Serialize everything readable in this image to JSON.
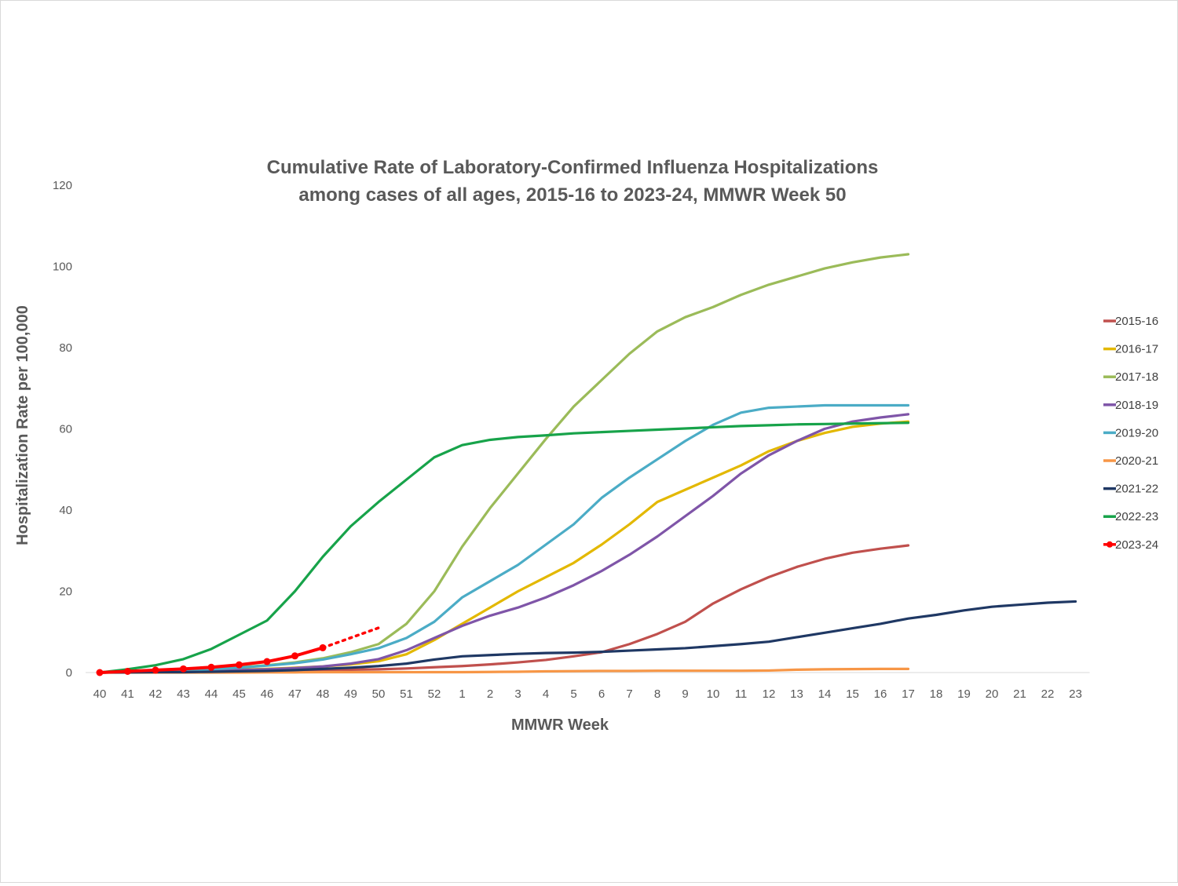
{
  "chart_data": {
    "type": "line",
    "title_lines": [
      "Cumulative Rate of Laboratory-Confirmed Influenza Hospitalizations",
      "among cases of all ages, 2015-16 to 2023-24, MMWR Week 50"
    ],
    "xlabel": "MMWR Week",
    "ylabel": "Hospitalization Rate per 100,000",
    "categories": [
      "40",
      "41",
      "42",
      "43",
      "44",
      "45",
      "46",
      "47",
      "48",
      "49",
      "50",
      "51",
      "52",
      "1",
      "2",
      "3",
      "4",
      "5",
      "6",
      "7",
      "8",
      "9",
      "10",
      "11",
      "12",
      "13",
      "14",
      "15",
      "16",
      "17",
      "18",
      "19",
      "20",
      "21",
      "22",
      "23"
    ],
    "ylim": [
      0,
      120
    ],
    "yticks": [
      "0",
      "20",
      "40",
      "60",
      "80",
      "100",
      "120"
    ],
    "grid": false,
    "legend_position": "right",
    "series": [
      {
        "name": "2015-16",
        "color": "#c0504d",
        "values": [
          0,
          0.1,
          0.1,
          0.2,
          0.2,
          0.3,
          0.4,
          0.5,
          0.6,
          0.7,
          0.8,
          1.0,
          1.3,
          1.6,
          2.0,
          2.5,
          3.1,
          4.0,
          5.0,
          7.0,
          9.5,
          12.5,
          17,
          20.5,
          23.5,
          26,
          28,
          29.5,
          30.5,
          31.3,
          null,
          null,
          null,
          null,
          null,
          null
        ]
      },
      {
        "name": "2016-17",
        "color": "#e3b800",
        "values": [
          0,
          0.1,
          0.2,
          0.3,
          0.5,
          0.7,
          0.9,
          1.2,
          1.5,
          2.0,
          2.8,
          4.5,
          8.0,
          12,
          16,
          20,
          23.5,
          27,
          31.5,
          36.5,
          42,
          45,
          48,
          51,
          54.5,
          57,
          59,
          60.5,
          61.3,
          61.8,
          null,
          null,
          null,
          null,
          null,
          null
        ]
      },
      {
        "name": "2017-18",
        "color": "#9bbb59",
        "values": [
          0,
          0.2,
          0.4,
          0.6,
          0.9,
          1.3,
          1.8,
          2.5,
          3.5,
          5.0,
          7.0,
          12,
          20,
          31,
          40.5,
          49,
          57.5,
          65.5,
          72,
          78.5,
          84,
          87.5,
          90,
          93,
          95.5,
          97.5,
          99.5,
          101,
          102.2,
          103,
          null,
          null,
          null,
          null,
          null,
          null
        ]
      },
      {
        "name": "2018-19",
        "color": "#7f55a8",
        "values": [
          0,
          0.1,
          0.2,
          0.3,
          0.4,
          0.6,
          0.8,
          1.1,
          1.5,
          2.2,
          3.3,
          5.5,
          8.5,
          11.5,
          14,
          16,
          18.5,
          21.5,
          25,
          29,
          33.5,
          38.5,
          43.5,
          49,
          53.5,
          57,
          60,
          61.8,
          62.8,
          63.6,
          null,
          null,
          null,
          null,
          null,
          null
        ]
      },
      {
        "name": "2019-20",
        "color": "#4bacc6",
        "values": [
          0,
          0.1,
          0.3,
          0.5,
          0.8,
          1.2,
          1.7,
          2.3,
          3.2,
          4.5,
          6.0,
          8.5,
          12.5,
          18.5,
          22.5,
          26.5,
          31.5,
          36.5,
          43,
          48,
          52.5,
          57,
          61,
          64,
          65.2,
          65.5,
          65.8,
          65.8,
          65.8,
          65.8,
          null,
          null,
          null,
          null,
          null,
          null
        ]
      },
      {
        "name": "2020-21",
        "color": "#f79646",
        "values": [
          0,
          0,
          0,
          0,
          0,
          0,
          0.05,
          0.05,
          0.1,
          0.1,
          0.1,
          0.1,
          0.1,
          0.1,
          0.15,
          0.2,
          0.3,
          0.35,
          0.4,
          0.4,
          0.45,
          0.45,
          0.45,
          0.45,
          0.5,
          0.7,
          0.8,
          0.85,
          0.9,
          0.9,
          null,
          null,
          null,
          null,
          null,
          null
        ]
      },
      {
        "name": "2021-22",
        "color": "#1f3864",
        "values": [
          0,
          0.05,
          0.1,
          0.1,
          0.2,
          0.3,
          0.4,
          0.6,
          0.9,
          1.2,
          1.6,
          2.2,
          3.2,
          4.0,
          4.3,
          4.6,
          4.8,
          4.9,
          5.1,
          5.4,
          5.7,
          6.0,
          6.5,
          7.0,
          7.6,
          8.7,
          9.8,
          10.9,
          12.0,
          13.3,
          14.2,
          15.3,
          16.2,
          16.7,
          17.2,
          17.5
        ]
      },
      {
        "name": "2022-23",
        "color": "#17a34a",
        "values": [
          0,
          0.8,
          1.8,
          3.3,
          5.8,
          9.3,
          12.8,
          20,
          28.5,
          36,
          42,
          47.5,
          53,
          56,
          57.3,
          58,
          58.4,
          58.9,
          59.2,
          59.5,
          59.8,
          60.1,
          60.4,
          60.7,
          60.9,
          61.1,
          61.2,
          61.3,
          61.4,
          61.5,
          null,
          null,
          null,
          null,
          null,
          null
        ]
      },
      {
        "name": "2023-24",
        "color": "#ff0000",
        "values": [
          0,
          0.3,
          0.6,
          0.9,
          1.3,
          1.9,
          2.7,
          4.1,
          6.1,
          null,
          null,
          null,
          null,
          null,
          null,
          null,
          null,
          null,
          null,
          null,
          null,
          null,
          null,
          null,
          null,
          null,
          null,
          null,
          null,
          null,
          null,
          null,
          null,
          null,
          null,
          null
        ],
        "markers": true,
        "projection": {
          "from_index": 8,
          "to_index": 10,
          "to_value": 11
        }
      }
    ]
  }
}
